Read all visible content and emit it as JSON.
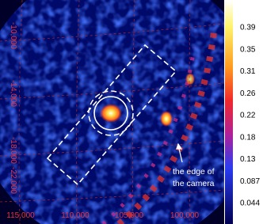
{
  "image": {
    "y_labels": [
      "-10,000",
      "-14,000",
      "-18,000",
      "-22,000"
    ],
    "x_labels": [
      "115,000",
      "110,000",
      "105,000",
      "100,000"
    ],
    "annotation": [
      "the edge of",
      "the camera"
    ]
  },
  "colorbar": {
    "ticks": [
      "0.39",
      "0.35",
      "0.31",
      "0.26",
      "0.22",
      "0.18",
      "0.13",
      "0.087",
      "0.044"
    ]
  }
}
